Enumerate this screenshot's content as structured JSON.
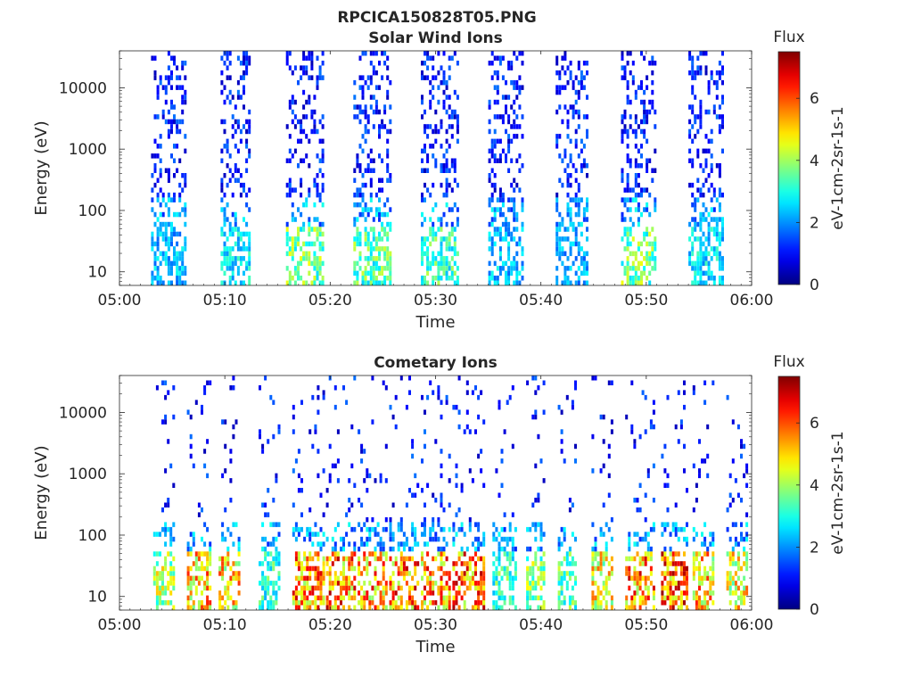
{
  "figure": {
    "filename": "RPCICA150828T05.PNG"
  },
  "colors": {
    "axis": "#262626",
    "background": "#ffffff"
  },
  "chart_data": [
    {
      "type": "heatmap",
      "title": "Solar Wind Ions",
      "xlabel": "Time",
      "ylabel": "Energy (eV)",
      "x_ticks": [
        "05:00",
        "05:10",
        "05:20",
        "05:30",
        "05:40",
        "05:50",
        "06:00"
      ],
      "xlim": [
        "05:00",
        "06:00"
      ],
      "y_scale": "log",
      "y_ticks": [
        10,
        100,
        1000,
        10000
      ],
      "y_tick_labels": [
        "10",
        "100",
        "1000",
        "10000"
      ],
      "ylim": [
        6,
        40000
      ],
      "grid": false,
      "colorbar": {
        "title": "Flux",
        "label": "eV-1cm-2sr-1s-1",
        "ticks": [
          0,
          2,
          4,
          6
        ],
        "tick_labels": [
          "0",
          "2",
          "4",
          "6"
        ],
        "range": [
          0,
          7.5
        ],
        "colormap": "jet"
      },
      "sweeps": [
        {
          "start_min": 3.0,
          "end_min": 6.2,
          "low_energy_peak": 3.0
        },
        {
          "start_min": 9.6,
          "end_min": 12.4,
          "low_energy_peak": 3.4
        },
        {
          "start_min": 15.8,
          "end_min": 19.2,
          "low_energy_peak": 4.6
        },
        {
          "start_min": 22.2,
          "end_min": 25.6,
          "low_energy_peak": 4.4
        },
        {
          "start_min": 28.6,
          "end_min": 32.0,
          "low_energy_peak": 4.2
        },
        {
          "start_min": 35.0,
          "end_min": 38.2,
          "low_energy_peak": 3.0
        },
        {
          "start_min": 41.4,
          "end_min": 44.4,
          "low_energy_peak": 2.8
        },
        {
          "start_min": 47.6,
          "end_min": 50.8,
          "low_energy_peak": 4.6
        },
        {
          "start_min": 54.0,
          "end_min": 57.2,
          "low_energy_peak": 3.4
        }
      ]
    },
    {
      "type": "heatmap",
      "title": "Cometary Ions",
      "xlabel": "Time",
      "ylabel": "Energy (eV)",
      "x_ticks": [
        "05:00",
        "05:10",
        "05:20",
        "05:30",
        "05:40",
        "05:50",
        "06:00"
      ],
      "xlim": [
        "05:00",
        "06:00"
      ],
      "y_scale": "log",
      "y_ticks": [
        10,
        100,
        1000,
        10000
      ],
      "y_tick_labels": [
        "10",
        "100",
        "1000",
        "10000"
      ],
      "ylim": [
        6,
        40000
      ],
      "grid": false,
      "colorbar": {
        "title": "Flux",
        "label": "eV-1cm-2sr-1s-1",
        "ticks": [
          0,
          2,
          4,
          6
        ],
        "tick_labels": [
          "0",
          "2",
          "4",
          "6"
        ],
        "range": [
          0,
          7.5
        ],
        "colormap": "jet"
      },
      "sweeps": [
        {
          "start_min": 3.2,
          "end_min": 5.2,
          "low_energy_peak": 5.2
        },
        {
          "start_min": 6.4,
          "end_min": 8.6,
          "low_energy_peak": 6.4
        },
        {
          "start_min": 9.4,
          "end_min": 11.4,
          "low_energy_peak": 6.2
        },
        {
          "start_min": 13.2,
          "end_min": 15.2,
          "low_energy_peak": 4.0
        },
        {
          "start_min": 16.4,
          "end_min": 19.4,
          "low_energy_peak": 7.0
        },
        {
          "start_min": 19.6,
          "end_min": 22.4,
          "low_energy_peak": 7.2
        },
        {
          "start_min": 22.6,
          "end_min": 25.4,
          "low_energy_peak": 6.8
        },
        {
          "start_min": 25.6,
          "end_min": 28.4,
          "low_energy_peak": 7.2
        },
        {
          "start_min": 28.6,
          "end_min": 31.4,
          "low_energy_peak": 7.0
        },
        {
          "start_min": 31.6,
          "end_min": 34.6,
          "low_energy_peak": 7.2
        },
        {
          "start_min": 35.4,
          "end_min": 37.6,
          "low_energy_peak": 4.2
        },
        {
          "start_min": 38.6,
          "end_min": 40.4,
          "low_energy_peak": 4.8
        },
        {
          "start_min": 41.6,
          "end_min": 43.4,
          "low_energy_peak": 4.4
        },
        {
          "start_min": 44.8,
          "end_min": 46.8,
          "low_energy_peak": 5.8
        },
        {
          "start_min": 48.0,
          "end_min": 50.8,
          "low_energy_peak": 7.0
        },
        {
          "start_min": 51.4,
          "end_min": 53.8,
          "low_energy_peak": 7.4
        },
        {
          "start_min": 54.4,
          "end_min": 56.4,
          "low_energy_peak": 6.4
        },
        {
          "start_min": 57.6,
          "end_min": 59.6,
          "low_energy_peak": 6.0
        }
      ]
    }
  ]
}
